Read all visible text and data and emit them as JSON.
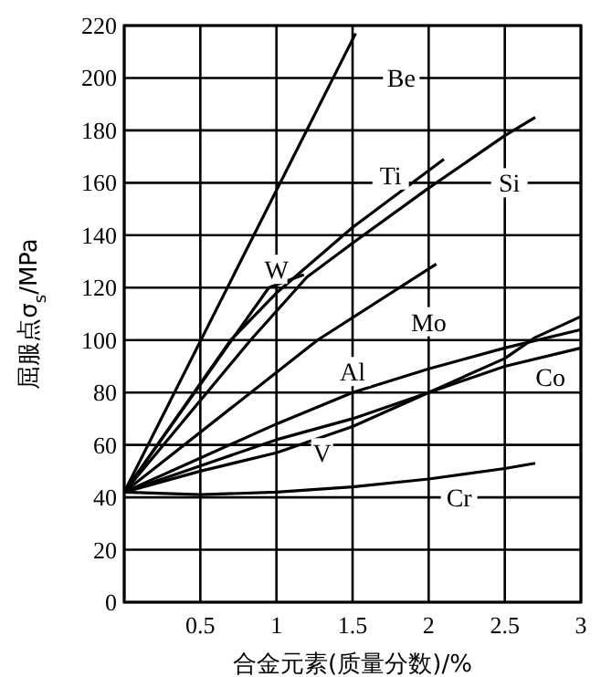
{
  "chart_data": {
    "type": "line",
    "xlabel": "合金元素(质量分数)/%",
    "ylabel": "屈服点σ$_{s}$/MPa",
    "xlim": [
      0,
      3
    ],
    "ylim": [
      0,
      220
    ],
    "xticks": [
      {
        "value": 0,
        "label": null
      },
      0.5,
      1,
      1.5,
      2,
      2.5,
      3
    ],
    "yticks": [
      0,
      20,
      40,
      60,
      80,
      100,
      120,
      140,
      160,
      180,
      200,
      220
    ],
    "grid": true,
    "marker": "none",
    "line_style": "solid",
    "series": [
      {
        "name": "Be",
        "color": "#000000",
        "x": [
          0,
          1.52
        ],
        "values": [
          42,
          217
        ]
      },
      {
        "name": "Ti",
        "color": "#000000",
        "x": [
          0,
          0.7,
          1.0,
          1.5,
          2.1
        ],
        "values": [
          42,
          100,
          118,
          143,
          169
        ]
      },
      {
        "name": "Si",
        "color": "#000000",
        "x": [
          0,
          0.83,
          1.2,
          1.5,
          2.0,
          2.5,
          2.7
        ],
        "values": [
          42,
          100,
          124,
          137,
          158,
          178,
          185
        ]
      },
      {
        "name": "W",
        "color": "#000000",
        "x": [
          0,
          0.95,
          1.18
        ],
        "values": [
          42,
          120,
          125
        ]
      },
      {
        "name": "Mo",
        "color": "#000000",
        "x": [
          0,
          1.27,
          2.05
        ],
        "values": [
          42,
          100,
          129
        ]
      },
      {
        "name": "Al",
        "color": "#000000",
        "x": [
          0,
          1,
          1.5,
          2,
          2.5,
          3
        ],
        "values": [
          42,
          68,
          80,
          89,
          97,
          104
        ]
      },
      {
        "name": "Co",
        "color": "#000000",
        "x": [
          0,
          1,
          1.5,
          2,
          2.5,
          3
        ],
        "values": [
          42,
          62,
          70,
          80,
          90,
          97
        ]
      },
      {
        "name": "V",
        "color": "#000000",
        "x": [
          0,
          0.5,
          1,
          1.5,
          2,
          2.5,
          2.7,
          3
        ],
        "values": [
          42,
          50,
          57,
          67,
          80,
          93,
          101,
          109
        ]
      },
      {
        "name": "Cr",
        "color": "#000000",
        "x": [
          0,
          0.5,
          1,
          1.5,
          2,
          2.5,
          2.7
        ],
        "values": [
          42,
          41,
          42,
          44,
          47,
          51,
          53
        ]
      }
    ]
  }
}
